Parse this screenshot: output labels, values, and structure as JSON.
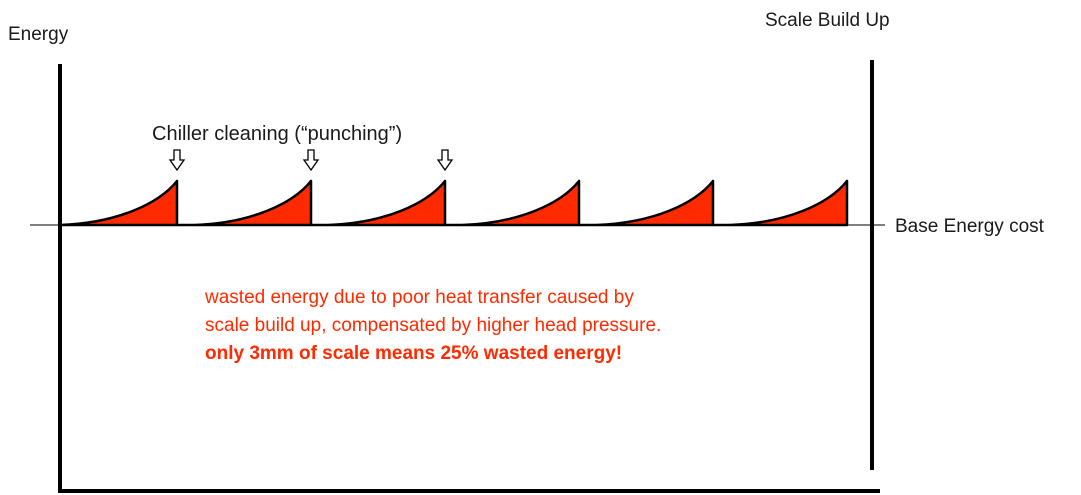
{
  "labels": {
    "y_axis": "Energy",
    "right_axis": "Scale Build Up",
    "cleaning": "Chiller cleaning (“punching”)",
    "baseline": "Base Energy cost"
  },
  "note": {
    "line1": "wasted energy due to poor heat transfer caused by",
    "line2": "scale build up, compensated by higher head pressure.",
    "line3": "only 3mm of scale means 25% wasted energy!"
  },
  "colors": {
    "wasted_fill": "#ff2a00",
    "note_text": "#ff2a00",
    "line": "#000000"
  },
  "cycles": {
    "count": 6,
    "cleaning_markers_on_cycles": [
      1,
      2,
      3
    ]
  }
}
